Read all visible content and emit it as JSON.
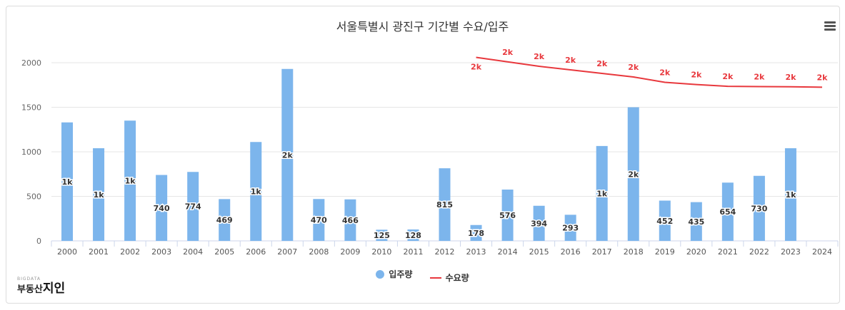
{
  "title": "서울특별시 광진구 기간별 수요/입주",
  "legend": {
    "supply": "입주량",
    "demand": "수요량"
  },
  "colors": {
    "bar": "#7cb5ec",
    "line": "#e8383d",
    "grid": "#e6e6e6",
    "axis": "#ccd6eb"
  },
  "logo": {
    "small": "BIGDATA",
    "main_prefix": "부동산",
    "main_accent": "지인"
  },
  "chart_data": {
    "type": "bar",
    "categories": [
      "2000",
      "2001",
      "2002",
      "2003",
      "2004",
      "2005",
      "2006",
      "2007",
      "2008",
      "2009",
      "2010",
      "2011",
      "2012",
      "2013",
      "2014",
      "2015",
      "2016",
      "2017",
      "2018",
      "2019",
      "2020",
      "2021",
      "2022",
      "2023",
      "2024"
    ],
    "ylim": [
      0,
      2000
    ],
    "yticks": [
      0,
      500,
      1000,
      1500,
      2000
    ],
    "grid": true,
    "legend_position": "bottom",
    "series": [
      {
        "name": "입주량",
        "type": "bar",
        "values": [
          1330,
          1040,
          1350,
          740,
          774,
          469,
          1110,
          1930,
          470,
          466,
          125,
          128,
          815,
          178,
          576,
          394,
          293,
          1065,
          1500,
          452,
          435,
          654,
          730,
          1040,
          null
        ],
        "labels": [
          "1k",
          "1k",
          "1k",
          "740",
          "774",
          "469",
          "1k",
          "2k",
          "470",
          "466",
          "125",
          "128",
          "815",
          "178",
          "576",
          "394",
          "293",
          "1k",
          "2k",
          "452",
          "435",
          "654",
          "730",
          "1k",
          ""
        ]
      },
      {
        "name": "수요량",
        "type": "line",
        "values": [
          null,
          null,
          null,
          null,
          null,
          null,
          null,
          null,
          null,
          null,
          null,
          null,
          null,
          2060,
          2010,
          1960,
          1920,
          1880,
          1840,
          1780,
          1755,
          1735,
          1732,
          1730,
          1725
        ],
        "labels": [
          "",
          "",
          "",
          "",
          "",
          "",
          "",
          "",
          "",
          "",
          "",
          "",
          "",
          "2k",
          "2k",
          "2k",
          "2k",
          "2k",
          "2k",
          "2k",
          "2k",
          "2k",
          "2k",
          "2k",
          "2k"
        ]
      }
    ]
  }
}
